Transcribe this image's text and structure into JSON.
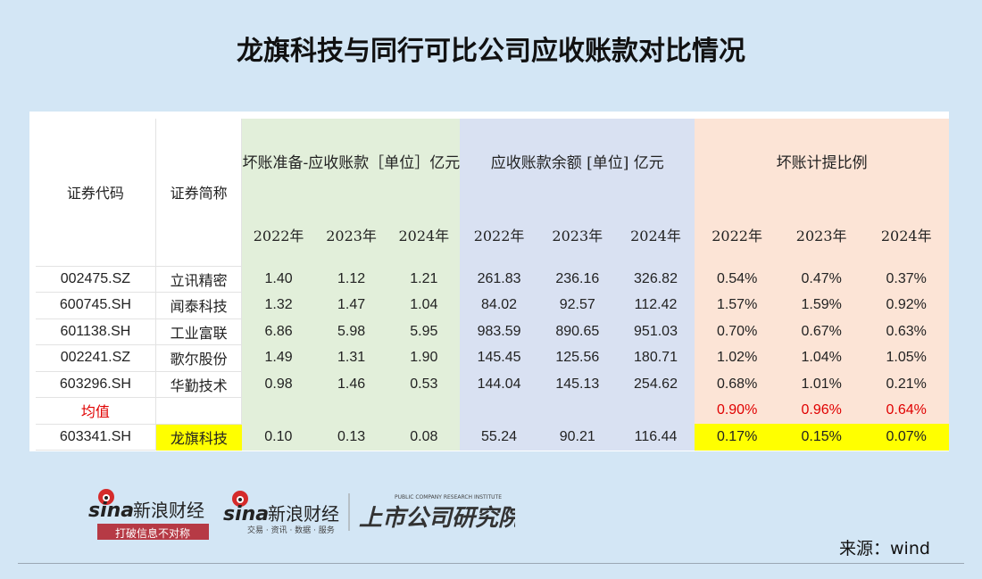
{
  "title": "龙旗科技与同行可比公司应收账款对比情况",
  "table": {
    "col_code": "证券代码",
    "col_name": "证券简称",
    "group1": "坏账准备-应收账款［单位］亿元",
    "group2": "应收账款余额 [单位] 亿元",
    "group3": "坏账计提比例",
    "years": [
      "2022年",
      "2023年",
      "2024年"
    ],
    "rows": [
      {
        "code": "002475.SZ",
        "name": "立讯精密",
        "v": [
          "1.40",
          "1.12",
          "1.21",
          "261.83",
          "236.16",
          "326.82",
          "0.54%",
          "0.47%",
          "0.37%"
        ]
      },
      {
        "code": "600745.SH",
        "name": "闻泰科技",
        "v": [
          "1.32",
          "1.47",
          "1.04",
          "84.02",
          "92.57",
          "112.42",
          "1.57%",
          "1.59%",
          "0.92%"
        ]
      },
      {
        "code": "601138.SH",
        "name": "工业富联",
        "v": [
          "6.86",
          "5.98",
          "5.95",
          "983.59",
          "890.65",
          "951.03",
          "0.70%",
          "0.67%",
          "0.63%"
        ]
      },
      {
        "code": "002241.SZ",
        "name": "歌尔股份",
        "v": [
          "1.49",
          "1.31",
          "1.90",
          "145.45",
          "125.56",
          "180.71",
          "1.02%",
          "1.04%",
          "1.05%"
        ]
      },
      {
        "code": "603296.SH",
        "name": "华勤技术",
        "v": [
          "0.98",
          "1.46",
          "0.53",
          "144.04",
          "145.13",
          "254.62",
          "0.68%",
          "1.01%",
          "0.21%"
        ]
      }
    ],
    "mean": {
      "label": "均值",
      "v": [
        "0.90%",
        "0.96%",
        "0.64%"
      ]
    },
    "target": {
      "code": "603341.SH",
      "name": "龙旗科技",
      "v": [
        "0.10",
        "0.13",
        "0.08",
        "55.24",
        "90.21",
        "116.44",
        "0.17%",
        "0.15%",
        "0.07%"
      ]
    }
  },
  "colors": {
    "green": "#e2efda",
    "blue": "#d9e1f2",
    "pink": "#fce4d6",
    "highlight": "#ffff00",
    "mean_text": "#e00000"
  },
  "logos": {
    "sina_a": "sina 新浪财经",
    "sina_a_tag": "打破信息不对称",
    "sina_b": "sina 新浪财经",
    "sina_b_tag": "交易 · 资讯 · 数据 · 服务",
    "institute": "上市公司研究院",
    "institute_en": "PUBLIC COMPANY RESEARCH INSTITUTE"
  },
  "source": "来源：wind"
}
